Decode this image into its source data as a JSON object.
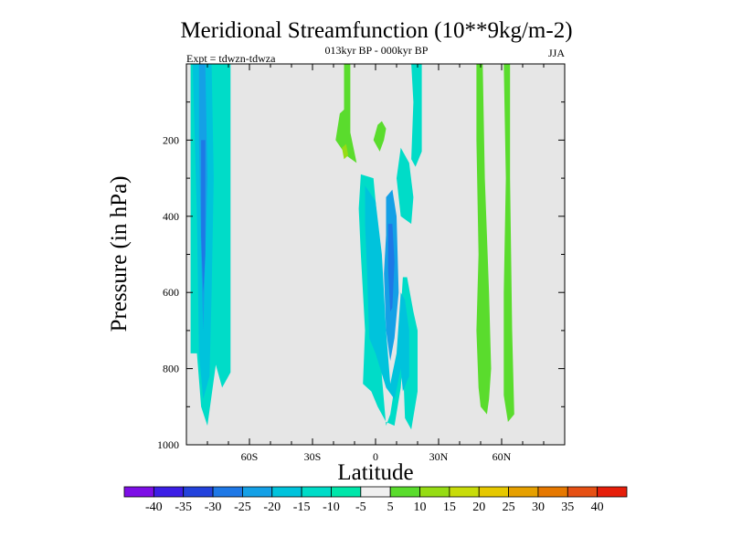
{
  "chart_data": {
    "type": "contour",
    "title": "Meridional Streamfunction (10**9kg/m-2)",
    "subtitle": "013kyr BP - 000kyr BP",
    "left_label": "Expt = tdwzn-tdwza",
    "right_label": "JJA",
    "xlabel": "Latitude",
    "ylabel": "Pressure (in hPa)",
    "xlim": [
      -90,
      90
    ],
    "ylim": [
      1000,
      0
    ],
    "x_ticks": [
      {
        "value": -60,
        "label": "60S"
      },
      {
        "value": -30,
        "label": "30S"
      },
      {
        "value": 0,
        "label": "0"
      },
      {
        "value": 30,
        "label": "30N"
      },
      {
        "value": 60,
        "label": "60N"
      }
    ],
    "y_ticks": [
      {
        "value": 200,
        "label": "200"
      },
      {
        "value": 400,
        "label": "400"
      },
      {
        "value": 600,
        "label": "600"
      },
      {
        "value": 800,
        "label": "800"
      },
      {
        "value": 1000,
        "label": "1000"
      }
    ],
    "background_color": "#e6e6e6",
    "colorbar": {
      "labels": [
        "-40",
        "-35",
        "-30",
        "-25",
        "-20",
        "-15",
        "-10",
        "-5",
        "5",
        "10",
        "15",
        "20",
        "25",
        "30",
        "35",
        "40"
      ],
      "colors": [
        "#7d0ee6",
        "#3c1ee6",
        "#2342dc",
        "#1e78e6",
        "#14a0e6",
        "#00c3dc",
        "#00dcc8",
        "#00e6aa",
        "#f0f0f0",
        "#5adc2d",
        "#96dc14",
        "#c8dc0a",
        "#e6c800",
        "#e6a000",
        "#e67800",
        "#e65014",
        "#e61e0a"
      ]
    },
    "regions": [
      {
        "name": "sh-cell-outer",
        "color_index": 6,
        "points": [
          [
            -88,
            0
          ],
          [
            -69,
            0
          ],
          [
            -69,
            810
          ],
          [
            -73,
            850
          ],
          [
            -76,
            790
          ],
          [
            -78,
            870
          ],
          [
            -80,
            950
          ],
          [
            -83,
            900
          ],
          [
            -85,
            760
          ],
          [
            -88,
            760
          ]
        ]
      },
      {
        "name": "sh-cell-mid",
        "color_index": 5,
        "points": [
          [
            -87,
            0
          ],
          [
            -78,
            0
          ],
          [
            -77,
            300
          ],
          [
            -78,
            600
          ],
          [
            -79,
            820
          ],
          [
            -82,
            880
          ],
          [
            -84,
            760
          ],
          [
            -85,
            400
          ]
        ]
      },
      {
        "name": "sh-cell-core",
        "color_index": 4,
        "points": [
          [
            -84,
            0
          ],
          [
            -81,
            0
          ],
          [
            -80,
            300
          ],
          [
            -81,
            500
          ],
          [
            -82,
            700
          ],
          [
            -83,
            500
          ],
          [
            -84,
            200
          ]
        ]
      },
      {
        "name": "sh-cell-center",
        "color_index": 3,
        "points": [
          [
            -83,
            200
          ],
          [
            -81,
            200
          ],
          [
            -81,
            500
          ],
          [
            -82,
            600
          ],
          [
            -83,
            450
          ]
        ]
      },
      {
        "name": "positive-upper-left",
        "color_index": 9,
        "points": [
          [
            -15,
            0
          ],
          [
            -12,
            0
          ],
          [
            -12,
            180
          ],
          [
            -9,
            260
          ],
          [
            -14,
            240
          ],
          [
            -19,
            200
          ],
          [
            -17,
            130
          ],
          [
            -15,
            120
          ]
        ]
      },
      {
        "name": "positive-upper-left-core",
        "color_index": 10,
        "points": [
          [
            -16,
            220
          ],
          [
            -15,
            250
          ],
          [
            -13,
            240
          ],
          [
            -14,
            210
          ]
        ]
      },
      {
        "name": "positive-blob-upper",
        "color_index": 9,
        "points": [
          [
            3,
            150
          ],
          [
            1,
            160
          ],
          [
            -1,
            200
          ],
          [
            2,
            230
          ],
          [
            4,
            200
          ],
          [
            5,
            170
          ]
        ]
      },
      {
        "name": "upper-band-right",
        "color_index": 6,
        "points": [
          [
            17,
            0
          ],
          [
            22,
            0
          ],
          [
            22,
            230
          ],
          [
            19,
            270
          ],
          [
            17,
            250
          ],
          [
            18,
            100
          ]
        ]
      },
      {
        "name": "trop-cell-outer",
        "color_index": 6,
        "points": [
          [
            -7,
            290
          ],
          [
            -1,
            300
          ],
          [
            1,
            420
          ],
          [
            2,
            600
          ],
          [
            3,
            820
          ],
          [
            5,
            950
          ],
          [
            7,
            920
          ],
          [
            11,
            780
          ],
          [
            12,
            650
          ],
          [
            13,
            560
          ],
          [
            15,
            560
          ],
          [
            18,
            650
          ],
          [
            20,
            700
          ],
          [
            20,
            860
          ],
          [
            17,
            960
          ],
          [
            14,
            930
          ],
          [
            13,
            780
          ],
          [
            12,
            850
          ],
          [
            9,
            950
          ],
          [
            5,
            940
          ],
          [
            1,
            900
          ],
          [
            -2,
            860
          ],
          [
            -6,
            840
          ],
          [
            -5,
            700
          ],
          [
            -7,
            500
          ],
          [
            -8,
            380
          ]
        ]
      },
      {
        "name": "trop-cell-upper",
        "color_index": 6,
        "points": [
          [
            12,
            220
          ],
          [
            16,
            260
          ],
          [
            18,
            350
          ],
          [
            17,
            420
          ],
          [
            12,
            400
          ],
          [
            10,
            300
          ]
        ]
      },
      {
        "name": "trop-cell-mid",
        "color_index": 5,
        "points": [
          [
            -5,
            320
          ],
          [
            0,
            360
          ],
          [
            3,
            500
          ],
          [
            5,
            700
          ],
          [
            7,
            840
          ],
          [
            10,
            760
          ],
          [
            12,
            600
          ],
          [
            14,
            620
          ],
          [
            16,
            700
          ],
          [
            16,
            820
          ],
          [
            13,
            860
          ],
          [
            12,
            800
          ],
          [
            9,
            880
          ],
          [
            5,
            850
          ],
          [
            0,
            760
          ],
          [
            -3,
            720
          ],
          [
            -4,
            550
          ],
          [
            -5,
            420
          ]
        ]
      },
      {
        "name": "trop-cell-core",
        "color_index": 4,
        "points": [
          [
            5,
            350
          ],
          [
            8,
            330
          ],
          [
            10,
            400
          ],
          [
            11,
            600
          ],
          [
            9,
            720
          ],
          [
            7,
            780
          ],
          [
            5,
            700
          ],
          [
            4,
            550
          ],
          [
            5,
            450
          ]
        ]
      },
      {
        "name": "trop-cell-center",
        "color_index": 3,
        "points": [
          [
            6,
            420
          ],
          [
            8,
            420
          ],
          [
            9,
            520
          ],
          [
            8,
            640
          ],
          [
            7,
            650
          ],
          [
            6,
            540
          ]
        ]
      },
      {
        "name": "positive-band-60n-west",
        "color_index": 9,
        "points": [
          [
            48,
            0
          ],
          [
            51,
            0
          ],
          [
            52,
            300
          ],
          [
            54,
            600
          ],
          [
            55,
            800
          ],
          [
            54,
            880
          ],
          [
            53,
            920
          ],
          [
            50,
            900
          ],
          [
            49,
            850
          ],
          [
            48,
            700
          ],
          [
            49,
            500
          ],
          [
            48,
            200
          ]
        ]
      },
      {
        "name": "positive-band-60n-east",
        "color_index": 9,
        "points": [
          [
            61,
            0
          ],
          [
            64,
            0
          ],
          [
            64,
            300
          ],
          [
            65,
            700
          ],
          [
            66,
            920
          ],
          [
            63,
            940
          ],
          [
            61,
            870
          ],
          [
            61,
            600
          ],
          [
            62,
            300
          ]
        ]
      }
    ]
  }
}
